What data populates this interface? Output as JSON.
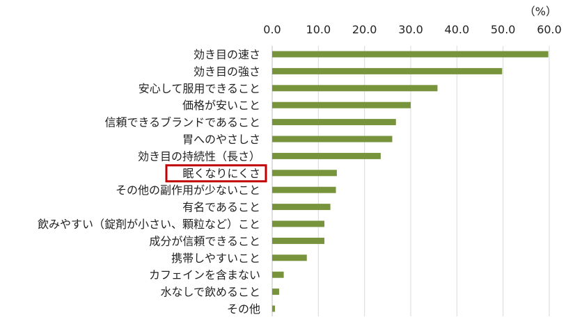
{
  "chart_data": {
    "type": "bar",
    "orientation": "horizontal",
    "unit": "（%）",
    "xlim": [
      0,
      60
    ],
    "ticks": [
      "0.0",
      "10.0",
      "20.0",
      "30.0",
      "40.0",
      "50.0",
      "60.0"
    ],
    "tick_values": [
      0,
      10,
      20,
      30,
      40,
      50,
      60
    ],
    "axis_position": "top",
    "grid": true,
    "bar_color": "#77933c",
    "highlight_color": "#c00000",
    "highlight_category": "眠くなりにくさ",
    "categories": [
      "効き目の速さ",
      "効き目の強さ",
      "安心して服用できること",
      "価格が安いこと",
      "信頼できるブランドであること",
      "胃へのやさしさ",
      "効き目の持続性（長さ）",
      "眠くなりにくさ",
      "その他の副作用が少ないこと",
      "有名であること",
      "飲みやすい（錠剤が小さい、顆粒など）こと",
      "成分が信頼できること",
      "携帯しやすいこと",
      "カフェインを含まない",
      "水なしで飲めること",
      "その他"
    ],
    "values": [
      59.8,
      49.8,
      35.8,
      30.0,
      26.8,
      26.0,
      23.5,
      14.0,
      13.8,
      12.6,
      11.3,
      11.3,
      7.5,
      2.5,
      1.5,
      0.6
    ]
  }
}
